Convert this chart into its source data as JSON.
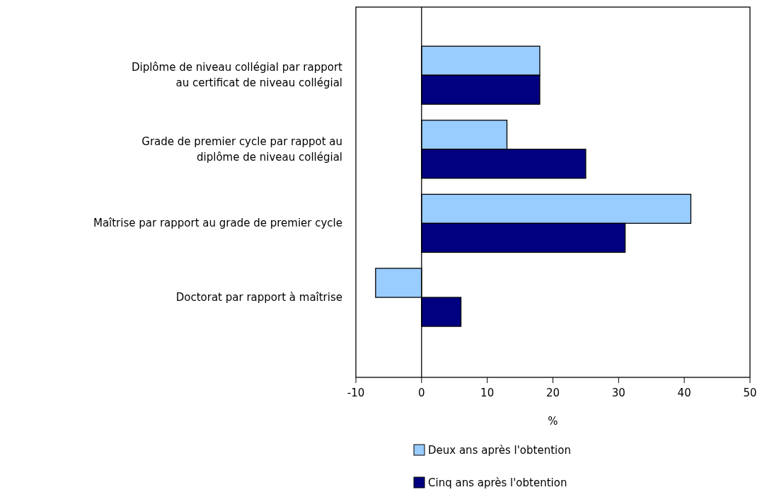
{
  "chart_data": {
    "type": "bar",
    "orientation": "horizontal",
    "xlabel": "%",
    "categories": [
      "Diplôme de niveau collégial par rapport\nau certificat de niveau collégial",
      "Grade de premier cycle par rappot au\ndiplôme de niveau collégial",
      "Maîtrise par rapport au grade de premier cycle",
      "Doctorat par rapport à maîtrise"
    ],
    "series": [
      {
        "name": "Deux ans après l'obtention",
        "color": "#99ccff",
        "values": [
          18,
          13,
          41,
          -7
        ]
      },
      {
        "name": "Cinq ans après l'obtention",
        "color": "#000080",
        "values": [
          18,
          25,
          31,
          6
        ]
      }
    ],
    "xlim": [
      -10,
      50
    ],
    "xticks": [
      -10,
      0,
      10,
      20,
      30,
      40,
      50
    ],
    "legend": "bottom"
  }
}
